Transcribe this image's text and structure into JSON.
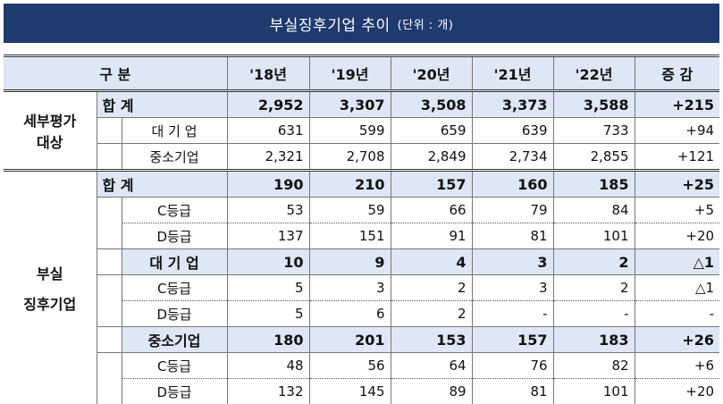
{
  "title": "부실징후기업 추이",
  "unit": "(단위 : 개)",
  "header": {
    "category": "구      분",
    "years": [
      "'18년",
      "'19년",
      "'20년",
      "'21년",
      "'22년"
    ],
    "change": "증  감"
  },
  "section1": {
    "label_line1": "세부평가",
    "label_line2": "대상",
    "total": {
      "label": "합    계",
      "values": [
        "2,952",
        "3,307",
        "3,508",
        "3,373",
        "3,588"
      ],
      "change": "+215"
    },
    "large": {
      "label": "대  기  업",
      "values": [
        "631",
        "599",
        "659",
        "639",
        "733"
      ],
      "change": "+94"
    },
    "sme": {
      "label": "중소기업",
      "values": [
        "2,321",
        "2,708",
        "2,849",
        "2,734",
        "2,855"
      ],
      "change": "+121"
    }
  },
  "section2": {
    "label_line1": "부실",
    "label_line2": "징후기업",
    "total": {
      "label": "합    계",
      "values": [
        "190",
        "210",
        "157",
        "160",
        "185"
      ],
      "change": "+25"
    },
    "total_c": {
      "label": "C등급",
      "values": [
        "53",
        "59",
        "66",
        "79",
        "84"
      ],
      "change": "+5"
    },
    "total_d": {
      "label": "D등급",
      "values": [
        "137",
        "151",
        "91",
        "81",
        "101"
      ],
      "change": "+20"
    },
    "large": {
      "label": "대 기 업",
      "values": [
        "10",
        "9",
        "4",
        "3",
        "2"
      ],
      "change": "△1"
    },
    "large_c": {
      "label": "C등급",
      "values": [
        "5",
        "3",
        "2",
        "3",
        "2"
      ],
      "change": "△1"
    },
    "large_d": {
      "label": "D등급",
      "values": [
        "5",
        "6",
        "2",
        "-",
        "-"
      ],
      "change": "-"
    },
    "sme": {
      "label": "중소기업",
      "values": [
        "180",
        "201",
        "153",
        "157",
        "183"
      ],
      "change": "+26"
    },
    "sme_c": {
      "label": "C등급",
      "values": [
        "48",
        "56",
        "64",
        "76",
        "82"
      ],
      "change": "+6"
    },
    "sme_d": {
      "label": "D등급",
      "values": [
        "132",
        "145",
        "89",
        "81",
        "101"
      ],
      "change": "+20"
    }
  }
}
